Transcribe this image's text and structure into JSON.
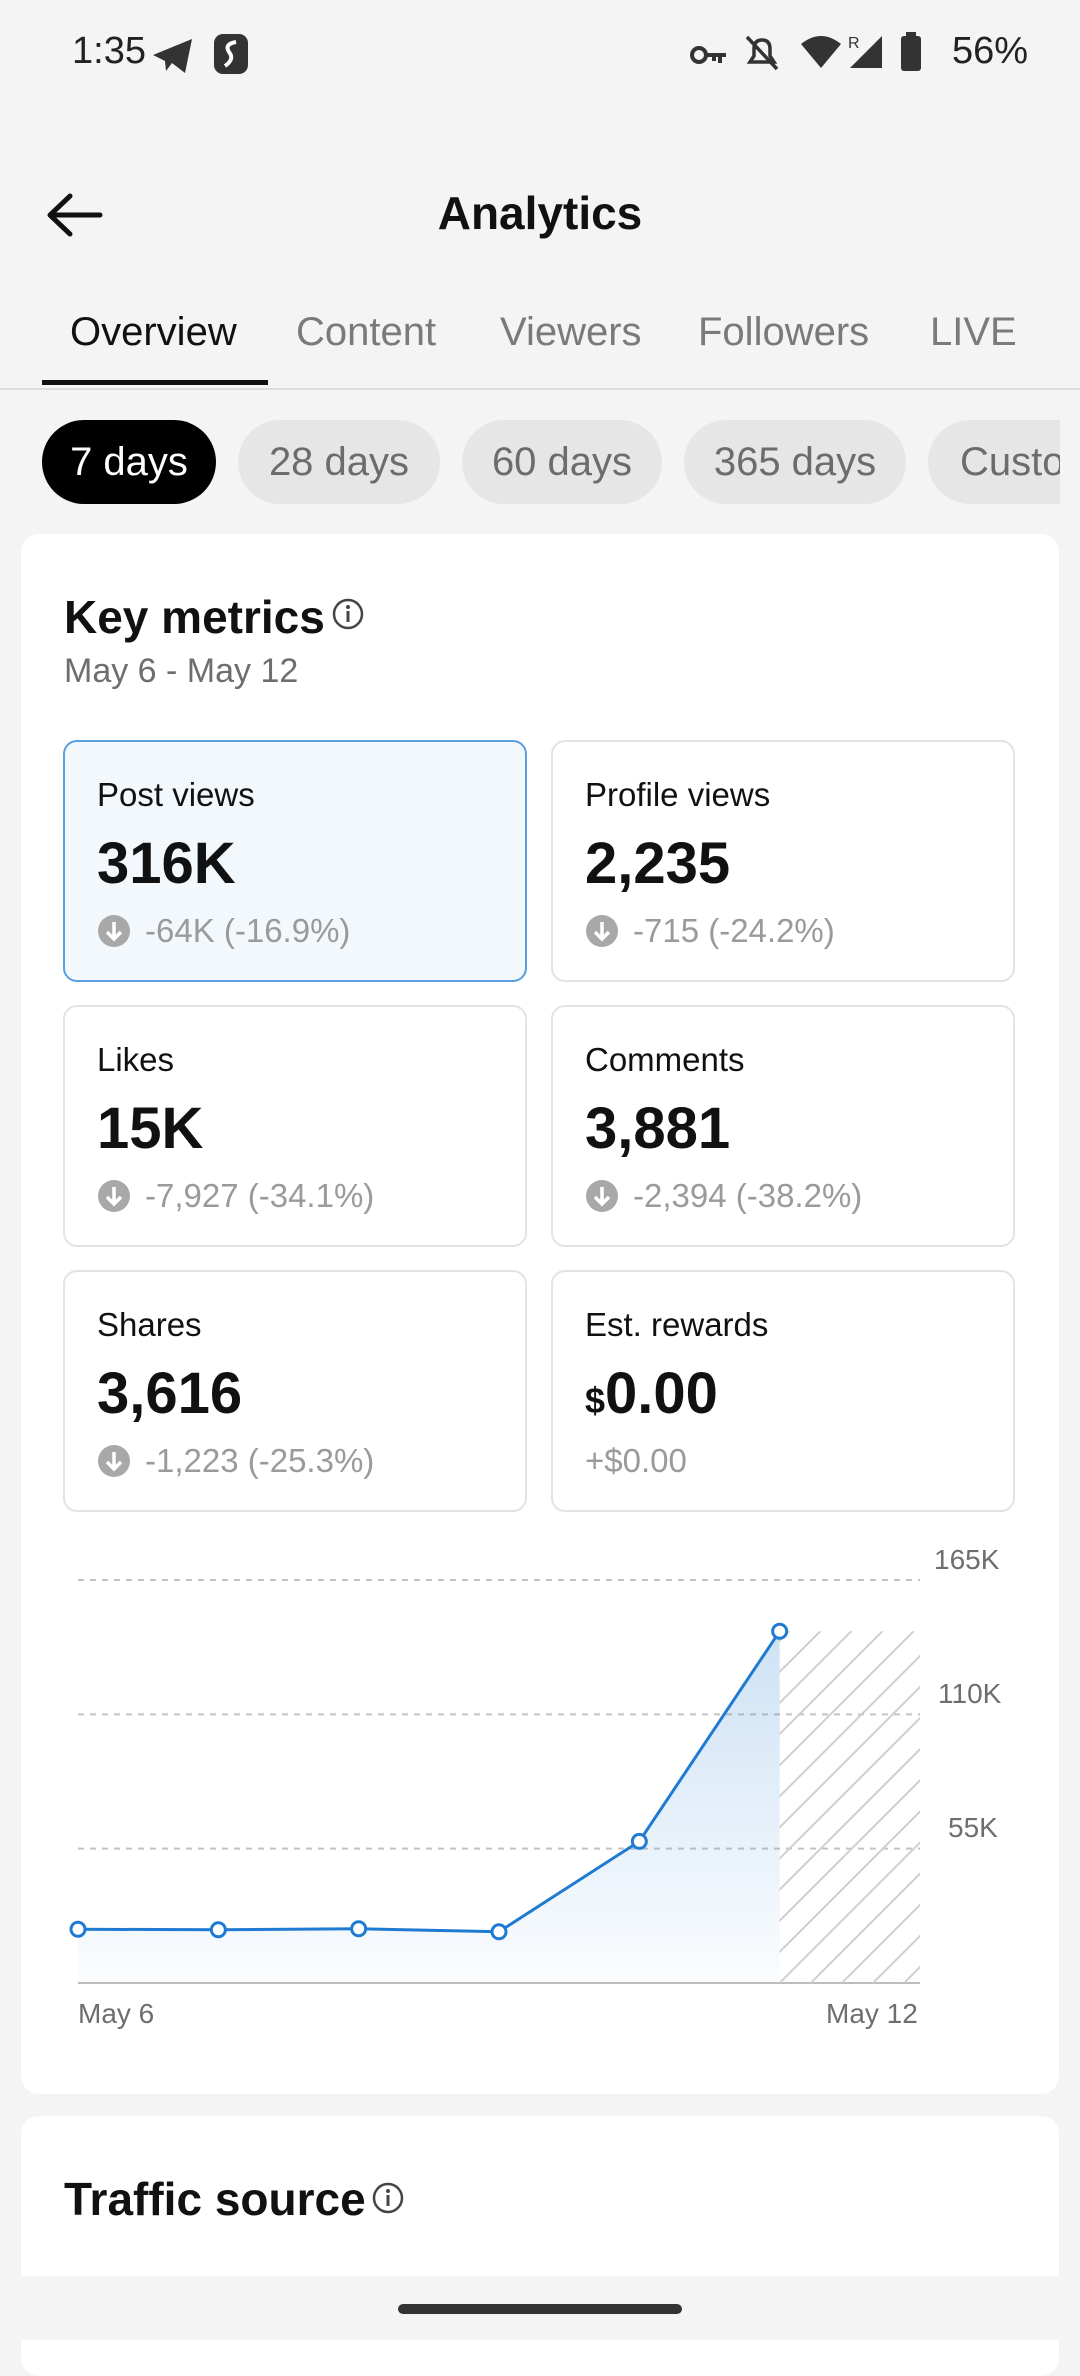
{
  "status_bar": {
    "time": "1:35",
    "battery": "56%"
  },
  "header": {
    "title": "Analytics"
  },
  "tabs": [
    {
      "label": "Overview",
      "active": true
    },
    {
      "label": "Content"
    },
    {
      "label": "Viewers"
    },
    {
      "label": "Followers"
    },
    {
      "label": "LIVE"
    }
  ],
  "ranges": [
    {
      "label": "7 days",
      "active": true
    },
    {
      "label": "28 days"
    },
    {
      "label": "60 days"
    },
    {
      "label": "365 days"
    },
    {
      "label": "Custom"
    }
  ],
  "key_metrics": {
    "title": "Key metrics",
    "date_range": "May 6 - May 12",
    "metrics": [
      {
        "label": "Post views",
        "value": "316K",
        "change": "-64K (-16.9%)"
      },
      {
        "label": "Profile views",
        "value": "2,235",
        "change": "-715 (-24.2%)"
      },
      {
        "label": "Likes",
        "value": "15K",
        "change": "-7,927 (-34.1%)"
      },
      {
        "label": "Comments",
        "value": "3,881",
        "change": "-2,394 (-38.2%)"
      },
      {
        "label": "Shares",
        "value": "3,616",
        "change": "-1,223 (-25.3%)"
      },
      {
        "label": "Est. rewards",
        "currency": "$",
        "value": "0.00",
        "change": "+$0.00"
      }
    ]
  },
  "chart_data": {
    "type": "line",
    "x": [
      "May 6",
      "May 7",
      "May 8",
      "May 9",
      "May 10",
      "May 11"
    ],
    "series": [
      {
        "values": [
          22000,
          21800,
          22200,
          21000,
          58000,
          144000
        ]
      }
    ],
    "x_tick_labels": [
      "May 6",
      "May 12"
    ],
    "y_tick_labels": [
      "55K",
      "110K",
      "165K"
    ],
    "ylim": [
      0,
      165000
    ],
    "grid": true,
    "hatched_pending_day": "May 12",
    "color": "#1f7bd1"
  },
  "traffic_source": {
    "title": "Traffic source"
  },
  "colors": {
    "accent": "#1f7bd1",
    "selected_border": "#5a9fe0",
    "selected_bg": "#f3f8fd"
  }
}
